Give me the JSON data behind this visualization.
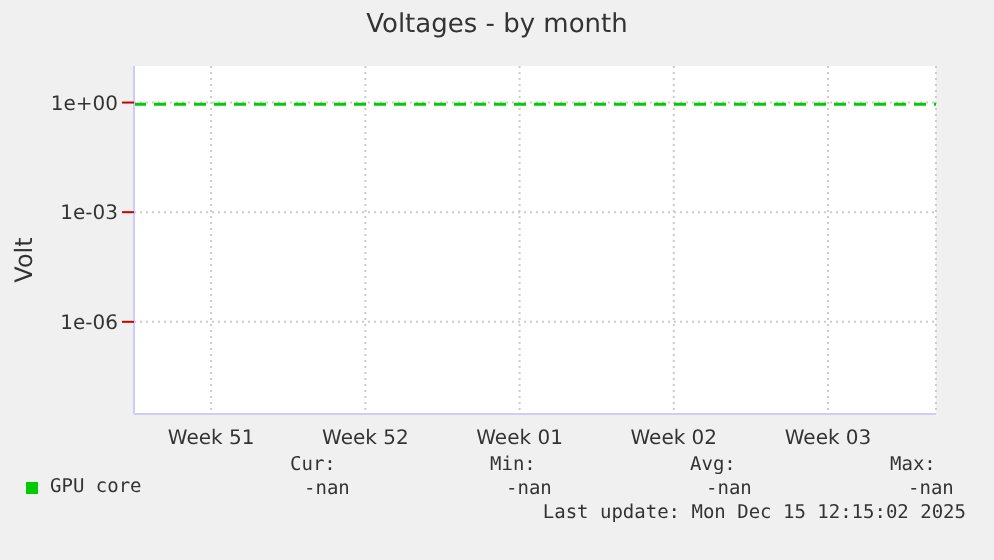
{
  "chart_data": {
    "type": "line",
    "title": "Voltages - by month",
    "ylabel": "Volt",
    "categories": [
      "Week 51",
      "Week 52",
      "Week 01",
      "Week 02",
      "Week 03"
    ],
    "series": [
      {
        "name": "GPU core",
        "color": "#00cc00",
        "values": [
          null,
          null,
          null,
          null,
          null
        ]
      }
    ],
    "log": "y",
    "ylim": [
      3e-09,
      10
    ],
    "yticks": [
      {
        "value": 1e-06,
        "label": "1e-06"
      },
      {
        "value": 0.001,
        "label": "1e-03"
      },
      {
        "value": 1,
        "label": "1e+00"
      }
    ],
    "ref_lines": [
      {
        "axis": "y",
        "value": 0.9,
        "color": "#00cc00",
        "line_style": "dashed"
      }
    ],
    "grid": true,
    "legend": "bottom left",
    "annotations": [
      "Cur:",
      "Min:",
      "Avg:",
      "Max:",
      "-nan",
      "-nan",
      "-nan",
      "-nan",
      "Last update: Mon Dec 15 12:15:02 2025"
    ]
  }
}
